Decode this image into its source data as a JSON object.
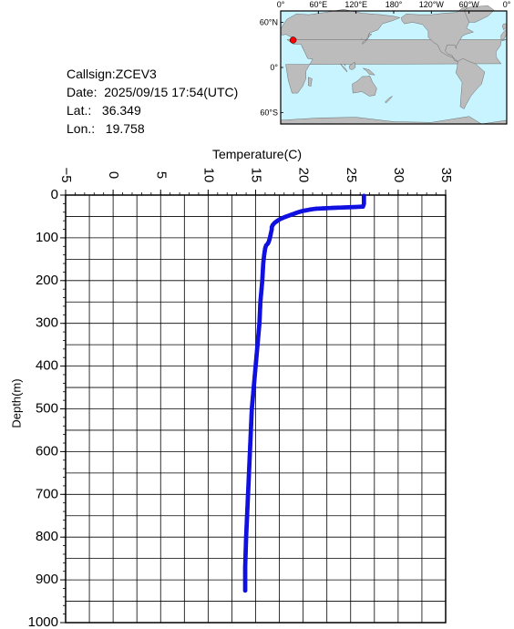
{
  "station": {
    "callsign": "Callsign:ZCEV3",
    "date": "Date:  2025/09/15 17:54(UTC)",
    "lat": "Lat.:   36.349",
    "lon": "Lon.:   19.758",
    "marker_lat": 36.349,
    "marker_lon": 19.758
  },
  "map": {
    "lon_labels": [
      "0°",
      "60°E",
      "120°E",
      "180°",
      "120°W",
      "60°W",
      "0°"
    ],
    "lat_labels": [
      "60°N",
      "0°",
      "60°S"
    ],
    "ocean_color": "#c8f4ff",
    "land_color": "#bcbcbc",
    "marker_color": "#ff0000"
  },
  "chart_data": {
    "type": "line",
    "xlabel": "Temperature(C)",
    "ylabel": "Depth(m)",
    "xlim": [
      -5,
      35
    ],
    "ylim": [
      0,
      1000
    ],
    "x_ticks": [
      -5,
      0,
      5,
      10,
      15,
      20,
      25,
      30,
      35
    ],
    "y_ticks": [
      0,
      100,
      200,
      300,
      400,
      500,
      600,
      700,
      800,
      900,
      1000
    ],
    "line_color": "#1010e0",
    "grid": true,
    "series": [
      {
        "temperature": [
          26.4,
          26.4,
          26.3,
          25.4,
          23.1,
          21.3,
          20.7,
          20.0,
          19.5,
          19.0,
          18.5,
          18.0,
          17.6,
          17.3,
          17.0,
          16.8,
          16.7,
          16.7,
          16.6,
          16.5,
          16.4,
          16.3,
          16.1,
          16.0,
          15.9,
          15.8,
          15.7,
          15.5,
          15.4,
          15.2,
          15.0,
          14.8,
          14.6,
          14.5,
          14.4,
          14.3,
          14.2,
          14.1,
          14.0,
          13.9,
          13.9
        ],
        "depth": [
          2,
          20,
          27,
          28,
          30,
          32,
          34,
          37,
          40,
          44,
          48,
          52,
          56,
          60,
          65,
          70,
          75,
          80,
          90,
          100,
          108,
          113,
          118,
          125,
          140,
          160,
          200,
          250,
          300,
          350,
          400,
          450,
          500,
          550,
          600,
          650,
          700,
          750,
          800,
          870,
          925
        ]
      }
    ]
  }
}
